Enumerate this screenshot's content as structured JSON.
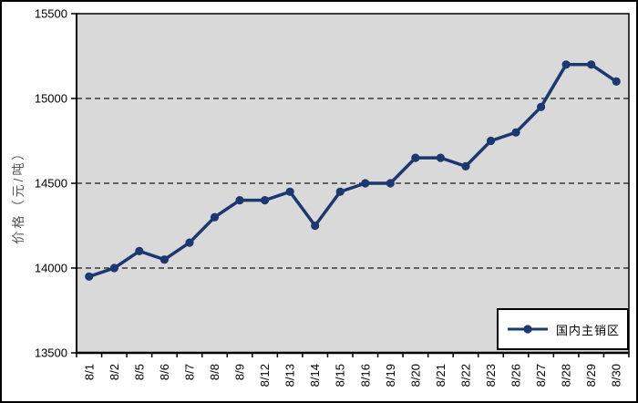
{
  "chart": {
    "colors": {
      "series": "#1B3870",
      "plot_bg": "#D9D9D9",
      "grid": "#1A1A1A",
      "axis": "#000000",
      "tick_label": "#000000",
      "ylabel_color": "#595959",
      "outer_border": "#000000",
      "legend_bg": "#FFFFFF"
    }
  },
  "chart_data": {
    "type": "line",
    "title": "",
    "xlabel": "",
    "ylabel": "价格（元/吨）",
    "categories": [
      "8/1",
      "8/2",
      "8/5",
      "8/6",
      "8/7",
      "8/8",
      "8/9",
      "8/12",
      "8/13",
      "8/14",
      "8/15",
      "8/16",
      "8/19",
      "8/20",
      "8/21",
      "8/22",
      "8/23",
      "8/26",
      "8/27",
      "8/28",
      "8/29",
      "8/30"
    ],
    "series": [
      {
        "name": "国内主销区",
        "values": [
          13950,
          14000,
          14100,
          14050,
          14150,
          14300,
          14400,
          14400,
          14450,
          14250,
          14450,
          14500,
          14500,
          14650,
          14650,
          14600,
          14750,
          14800,
          14950,
          15200,
          15200,
          15100
        ]
      }
    ],
    "ylim": [
      13500,
      15500
    ],
    "yticks": [
      13500,
      14000,
      14500,
      15000,
      15500
    ],
    "grid": "horizontal-dashed",
    "legend_position": "bottom-right",
    "marker": "circle"
  }
}
